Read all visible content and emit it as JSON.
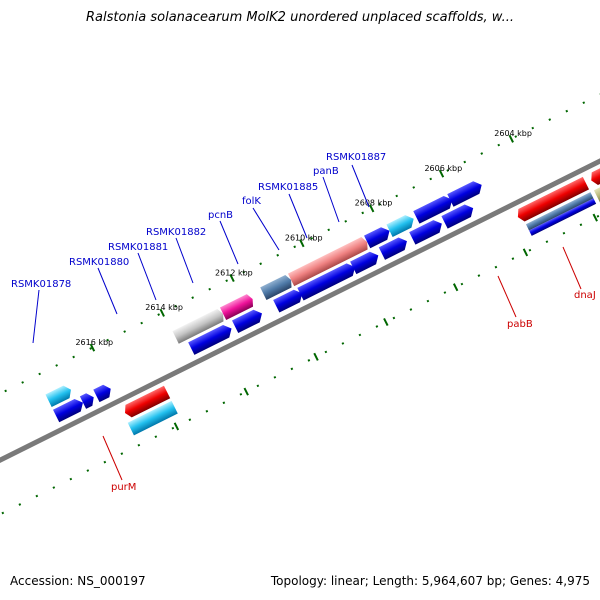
{
  "header": {
    "title": "Ralstonia solanacearum MolK2 unordered unplaced scaffolds, w..."
  },
  "footer": {
    "accession": "Accession: NS_000197",
    "stats": "Topology: linear; Length: 5,964,607 bp; Genes: 4,975"
  },
  "scale": {
    "ticks": [
      "2604 kbp",
      "2606 kbp",
      "2608 kbp",
      "2610 kbp",
      "2612 kbp",
      "2614 kbp",
      "2616 kbp"
    ]
  },
  "labels": {
    "top": [
      "RSMK01887",
      "panB",
      "RSMK01885",
      "folK",
      "pcnB",
      "RSMK01882",
      "RSMK01881",
      "RSMK01880",
      "RSMK01878"
    ],
    "bottom": [
      "dnaJ",
      "pabB",
      "purM"
    ]
  },
  "colors": {
    "forward": "#0000ee",
    "reverse": "#dd0000",
    "label_forward": "#0000cc",
    "label_reverse": "#cc0000"
  }
}
